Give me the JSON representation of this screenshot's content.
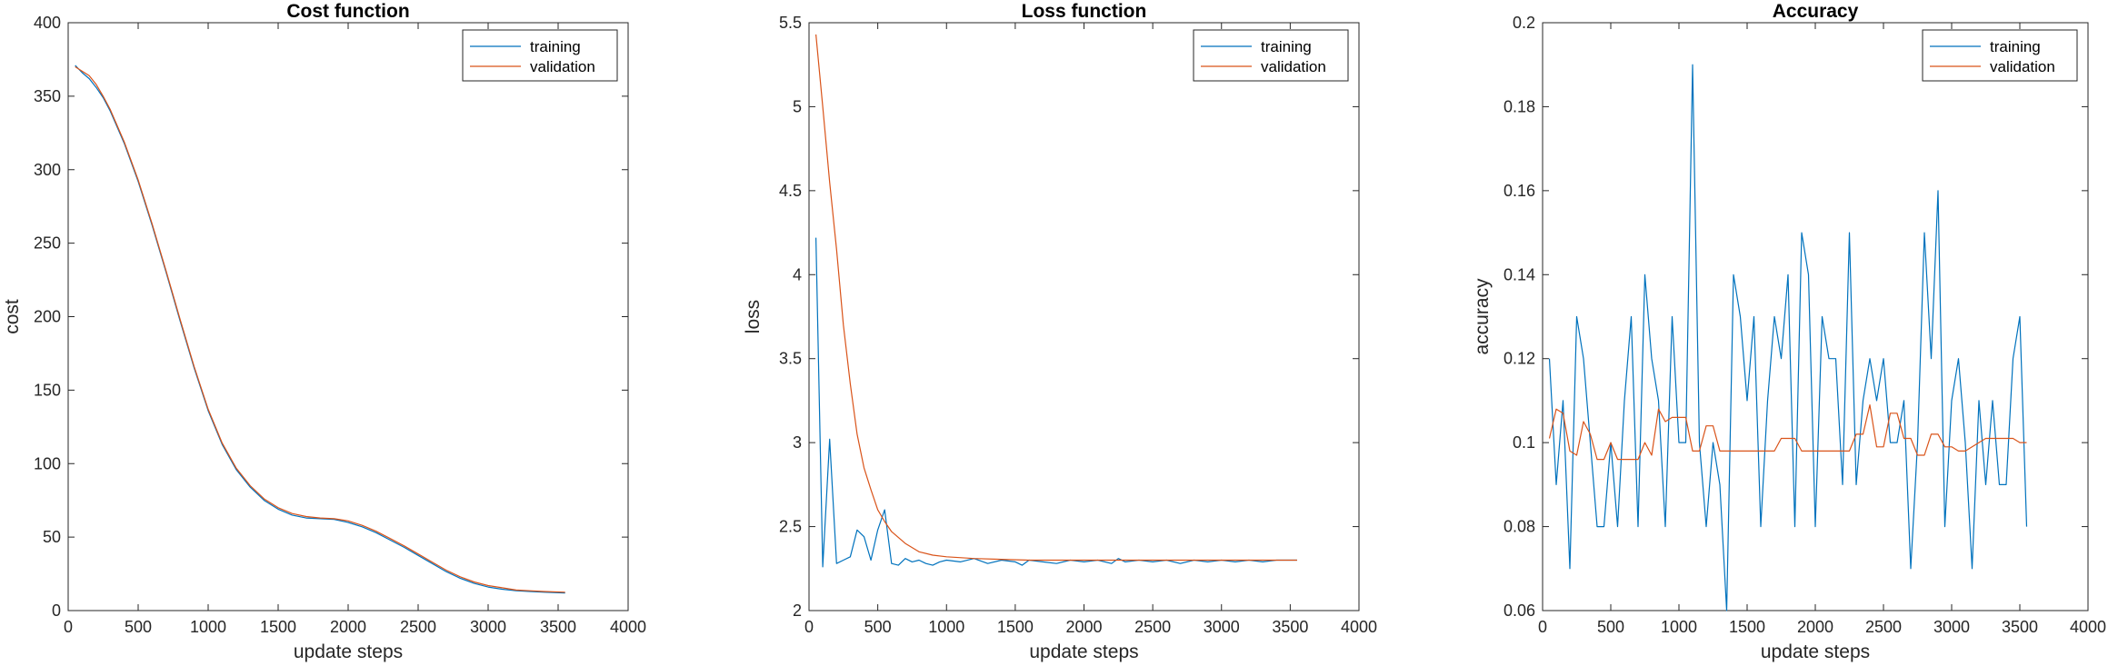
{
  "chart_data": [
    {
      "type": "line",
      "title": "Cost function",
      "xlabel": "update steps",
      "ylabel": "cost",
      "xlim": [
        0,
        4000
      ],
      "ylim": [
        0,
        400
      ],
      "xticks": [
        "0",
        "500",
        "1000",
        "1500",
        "2000",
        "2500",
        "3000",
        "3500",
        "4000"
      ],
      "yticks": [
        "0",
        "50",
        "100",
        "150",
        "200",
        "250",
        "300",
        "350",
        "400"
      ],
      "legend": "top-right",
      "grid": false,
      "series": [
        {
          "name": "training",
          "color": "#0072BD",
          "x": [
            50,
            100,
            150,
            200,
            250,
            300,
            400,
            500,
            600,
            700,
            800,
            900,
            1000,
            1100,
            1200,
            1300,
            1400,
            1500,
            1600,
            1700,
            1800,
            1900,
            2000,
            2100,
            2200,
            2300,
            2400,
            2500,
            2600,
            2700,
            2800,
            2900,
            3000,
            3100,
            3200,
            3300,
            3400,
            3550
          ],
          "y": [
            371,
            366,
            362,
            356,
            349,
            340,
            318,
            292,
            262,
            230,
            197,
            165,
            136,
            113,
            96,
            84,
            75,
            69,
            65,
            63,
            62.5,
            62,
            60,
            57,
            53,
            48,
            43,
            37.5,
            32,
            26.5,
            22,
            18.5,
            16,
            14.5,
            13.5,
            13,
            12.5,
            12
          ]
        },
        {
          "name": "validation",
          "color": "#D95319",
          "x": [
            50,
            100,
            150,
            200,
            250,
            300,
            400,
            500,
            600,
            700,
            800,
            900,
            1000,
            1100,
            1200,
            1300,
            1400,
            1500,
            1600,
            1700,
            1800,
            1900,
            2000,
            2100,
            2200,
            2300,
            2400,
            2500,
            2600,
            2700,
            2800,
            2900,
            3000,
            3100,
            3200,
            3300,
            3400,
            3550
          ],
          "y": [
            370,
            367,
            364,
            358,
            350,
            341,
            319,
            293,
            263,
            231,
            198,
            166,
            137,
            114,
            97,
            85,
            76,
            70,
            66,
            64,
            63,
            62.5,
            61,
            58,
            54,
            49,
            44,
            38.5,
            33,
            27.5,
            23,
            19.5,
            17,
            15.5,
            14,
            13.5,
            13,
            12.5
          ]
        }
      ]
    },
    {
      "type": "line",
      "title": "Loss function",
      "xlabel": "update steps",
      "ylabel": "loss",
      "xlim": [
        0,
        4000
      ],
      "ylim": [
        2,
        5.5
      ],
      "xticks": [
        "0",
        "500",
        "1000",
        "1500",
        "2000",
        "2500",
        "3000",
        "3500",
        "4000"
      ],
      "yticks": [
        "2",
        "2.5",
        "3",
        "3.5",
        "4",
        "4.5",
        "5",
        "5.5"
      ],
      "legend": "top-right",
      "grid": false,
      "series": [
        {
          "name": "training",
          "color": "#0072BD",
          "x": [
            50,
            100,
            150,
            200,
            250,
            300,
            350,
            400,
            450,
            500,
            550,
            600,
            650,
            700,
            750,
            800,
            850,
            900,
            950,
            1000,
            1100,
            1200,
            1300,
            1400,
            1500,
            1550,
            1600,
            1700,
            1800,
            1900,
            2000,
            2100,
            2200,
            2250,
            2300,
            2400,
            2500,
            2600,
            2700,
            2800,
            2900,
            3000,
            3100,
            3200,
            3300,
            3400,
            3550
          ],
          "y": [
            4.22,
            2.26,
            3.02,
            2.28,
            2.3,
            2.32,
            2.48,
            2.44,
            2.3,
            2.48,
            2.6,
            2.28,
            2.27,
            2.31,
            2.29,
            2.3,
            2.28,
            2.27,
            2.29,
            2.3,
            2.29,
            2.31,
            2.28,
            2.3,
            2.29,
            2.27,
            2.3,
            2.29,
            2.28,
            2.3,
            2.29,
            2.3,
            2.28,
            2.31,
            2.29,
            2.3,
            2.29,
            2.3,
            2.28,
            2.3,
            2.29,
            2.3,
            2.29,
            2.3,
            2.29,
            2.3,
            2.3
          ]
        },
        {
          "name": "validation",
          "color": "#D95319",
          "x": [
            50,
            100,
            150,
            200,
            250,
            300,
            350,
            400,
            450,
            500,
            550,
            600,
            700,
            800,
            900,
            1000,
            1200,
            1400,
            1600,
            1800,
            2000,
            2500,
            3000,
            3550
          ],
          "y": [
            5.43,
            5.0,
            4.55,
            4.15,
            3.7,
            3.35,
            3.05,
            2.85,
            2.72,
            2.6,
            2.53,
            2.47,
            2.4,
            2.35,
            2.33,
            2.32,
            2.31,
            2.305,
            2.3,
            2.3,
            2.3,
            2.3,
            2.3,
            2.3
          ]
        }
      ]
    },
    {
      "type": "line",
      "title": "Accuracy",
      "xlabel": "update steps",
      "ylabel": "accuracy",
      "xlim": [
        0,
        4000
      ],
      "ylim": [
        0.06,
        0.2
      ],
      "xticks": [
        "0",
        "500",
        "1000",
        "1500",
        "2000",
        "2500",
        "3000",
        "3500",
        "4000"
      ],
      "yticks": [
        "0.06",
        "0.08",
        "0.1",
        "0.12",
        "0.14",
        "0.16",
        "0.18",
        "0.2"
      ],
      "legend": "top-right",
      "grid": false,
      "series": [
        {
          "name": "training",
          "color": "#0072BD",
          "x": [
            50,
            100,
            150,
            200,
            250,
            300,
            350,
            400,
            450,
            500,
            550,
            600,
            650,
            700,
            750,
            800,
            850,
            900,
            950,
            1000,
            1050,
            1100,
            1150,
            1200,
            1250,
            1300,
            1350,
            1400,
            1450,
            1500,
            1550,
            1600,
            1650,
            1700,
            1750,
            1800,
            1850,
            1900,
            1950,
            2000,
            2050,
            2100,
            2150,
            2200,
            2250,
            2300,
            2350,
            2400,
            2450,
            2500,
            2550,
            2600,
            2650,
            2700,
            2750,
            2800,
            2850,
            2900,
            2950,
            3000,
            3050,
            3100,
            3150,
            3200,
            3250,
            3300,
            3350,
            3400,
            3450,
            3500,
            3550
          ],
          "y": [
            0.12,
            0.09,
            0.11,
            0.07,
            0.13,
            0.12,
            0.1,
            0.08,
            0.08,
            0.1,
            0.08,
            0.11,
            0.13,
            0.08,
            0.14,
            0.12,
            0.11,
            0.08,
            0.13,
            0.1,
            0.1,
            0.19,
            0.1,
            0.08,
            0.1,
            0.09,
            0.06,
            0.14,
            0.13,
            0.11,
            0.13,
            0.08,
            0.11,
            0.13,
            0.12,
            0.14,
            0.08,
            0.15,
            0.14,
            0.08,
            0.13,
            0.12,
            0.12,
            0.09,
            0.15,
            0.09,
            0.11,
            0.12,
            0.11,
            0.12,
            0.1,
            0.1,
            0.11,
            0.07,
            0.1,
            0.15,
            0.12,
            0.16,
            0.08,
            0.11,
            0.12,
            0.1,
            0.07,
            0.11,
            0.09,
            0.11,
            0.09,
            0.09,
            0.12,
            0.13,
            0.08
          ]
        },
        {
          "name": "validation",
          "color": "#D95319",
          "x": [
            50,
            100,
            150,
            200,
            250,
            300,
            350,
            400,
            450,
            500,
            550,
            600,
            650,
            700,
            750,
            800,
            850,
            900,
            950,
            1000,
            1050,
            1100,
            1150,
            1200,
            1250,
            1300,
            1350,
            1400,
            1450,
            1500,
            1550,
            1600,
            1650,
            1700,
            1750,
            1800,
            1850,
            1900,
            1950,
            2000,
            2050,
            2100,
            2150,
            2200,
            2250,
            2300,
            2350,
            2400,
            2450,
            2500,
            2550,
            2600,
            2650,
            2700,
            2750,
            2800,
            2850,
            2900,
            2950,
            3000,
            3050,
            3100,
            3150,
            3200,
            3250,
            3300,
            3350,
            3400,
            3450,
            3500,
            3550
          ],
          "y": [
            0.101,
            0.108,
            0.107,
            0.098,
            0.097,
            0.105,
            0.102,
            0.096,
            0.096,
            0.1,
            0.096,
            0.096,
            0.096,
            0.096,
            0.1,
            0.097,
            0.108,
            0.105,
            0.106,
            0.106,
            0.106,
            0.098,
            0.098,
            0.104,
            0.104,
            0.098,
            0.098,
            0.098,
            0.098,
            0.098,
            0.098,
            0.098,
            0.098,
            0.098,
            0.101,
            0.101,
            0.101,
            0.098,
            0.098,
            0.098,
            0.098,
            0.098,
            0.098,
            0.098,
            0.098,
            0.102,
            0.102,
            0.109,
            0.099,
            0.099,
            0.107,
            0.107,
            0.101,
            0.101,
            0.097,
            0.097,
            0.102,
            0.102,
            0.099,
            0.099,
            0.098,
            0.098,
            0.099,
            0.1,
            0.101,
            0.101,
            0.101,
            0.101,
            0.101,
            0.1,
            0.1
          ]
        }
      ]
    }
  ]
}
